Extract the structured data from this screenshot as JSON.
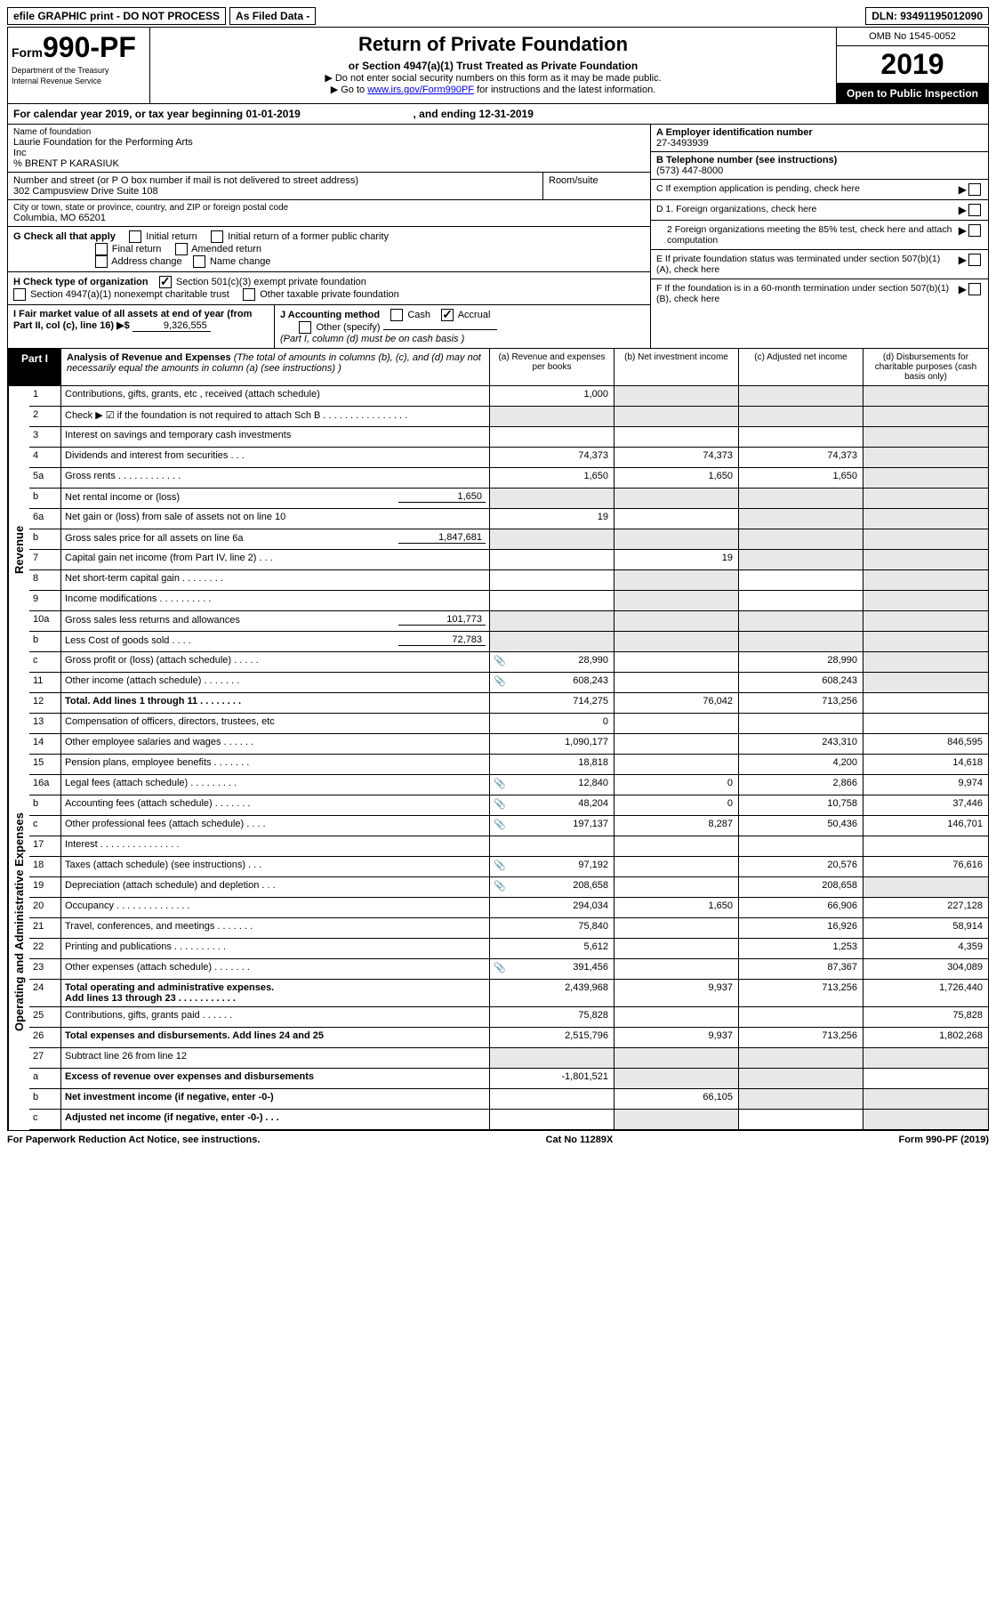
{
  "topbar": {
    "efile": "efile GRAPHIC print - DO NOT PROCESS",
    "asfiled": "As Filed Data -",
    "dln_label": "DLN:",
    "dln": "93491195012090"
  },
  "header": {
    "form_word": "Form",
    "form_no": "990-PF",
    "dept1": "Department of the Treasury",
    "dept2": "Internal Revenue Service",
    "title": "Return of Private Foundation",
    "subtitle": "or Section 4947(a)(1) Trust Treated as Private Foundation",
    "note1": "▶ Do not enter social security numbers on this form as it may be made public.",
    "note2_pre": "▶ Go to ",
    "note2_link": "www.irs.gov/Form990PF",
    "note2_post": " for instructions and the latest information.",
    "omb": "OMB No  1545-0052",
    "year": "2019",
    "inspect": "Open to Public Inspection"
  },
  "calyear": {
    "text_a": "For calendar year 2019, or tax year beginning 01-01-2019",
    "text_b": ", and ending 12-31-2019"
  },
  "left": {
    "name_label": "Name of foundation",
    "name1": "Laurie Foundation for the Performing Arts",
    "name2": "Inc",
    "name3": "% BRENT P KARASIUK",
    "addr_label": "Number and street (or P O  box number if mail is not delivered to street address)",
    "addr": "302 Campusview Drive Suite 108",
    "room_label": "Room/suite",
    "city_label": "City or town, state or province, country, and ZIP or foreign postal code",
    "city": "Columbia, MO  65201",
    "g_label": "G Check all that apply",
    "g1": "Initial return",
    "g2": "Initial return of a former public charity",
    "g3": "Final return",
    "g4": "Amended return",
    "g5": "Address change",
    "g6": "Name change",
    "h_label": "H Check type of organization",
    "h1": "Section 501(c)(3) exempt private foundation",
    "h2": "Section 4947(a)(1) nonexempt charitable trust",
    "h3": "Other taxable private foundation",
    "i_label": "I Fair market value of all assets at end of year (from Part II, col  (c), line 16) ▶$",
    "i_val": "9,326,555",
    "j_label": "J Accounting method",
    "j1": "Cash",
    "j2": "Accrual",
    "j3": "Other (specify)",
    "j_note": "(Part I, column (d) must be on cash basis )"
  },
  "right": {
    "a_label": "A Employer identification number",
    "a_val": "27-3493939",
    "b_label": "B Telephone number (see instructions)",
    "b_val": "(573) 447-8000",
    "c_label": "C  If exemption application is pending, check here",
    "d1_label": "D 1. Foreign organizations, check here",
    "d2_label": "2  Foreign organizations meeting the 85% test, check here and attach computation",
    "e_label": "E  If private foundation status was terminated under section 507(b)(1)(A), check here",
    "f_label": "F  If the foundation is in a 60-month termination under section 507(b)(1)(B), check here"
  },
  "part1": {
    "tag": "Part I",
    "title": "Analysis of Revenue and Expenses",
    "title_note": "(The total of amounts in columns (b), (c), and (d) may not necessarily equal the amounts in column (a) (see instructions) )",
    "col_a": "(a)   Revenue and expenses per books",
    "col_b": "(b)  Net investment income",
    "col_c": "(c)  Adjusted net income",
    "col_d": "(d)  Disbursements for charitable purposes (cash basis only)"
  },
  "rows": {
    "r1": {
      "n": "1",
      "d": "Contributions, gifts, grants, etc , received (attach schedule)",
      "a": "1,000"
    },
    "r2": {
      "n": "2",
      "d": "Check ▶ ☑ if the foundation is not required to attach Sch  B     .   .   .   .   .   .   .   .   .   .   .   .   .   .   .   ."
    },
    "r3": {
      "n": "3",
      "d": "Interest on savings and temporary cash investments"
    },
    "r4": {
      "n": "4",
      "d": "Dividends and interest from securities    .   .   .",
      "a": "74,373",
      "b": "74,373",
      "c": "74,373"
    },
    "r5a": {
      "n": "5a",
      "d": "Gross rents    .   .   .   .   .   .   .   .   .   .   .   .",
      "a": "1,650",
      "b": "1,650",
      "c": "1,650"
    },
    "r5b": {
      "n": "b",
      "d": "Net rental income or (loss)",
      "sub": "1,650"
    },
    "r6a": {
      "n": "6a",
      "d": "Net gain or (loss) from sale of assets not on line 10",
      "a": "19"
    },
    "r6b": {
      "n": "b",
      "d": "Gross sales price for all assets on line 6a",
      "sub": "1,847,681"
    },
    "r7": {
      "n": "7",
      "d": "Capital gain net income (from Part IV, line 2)   .   .   .",
      "b": "19"
    },
    "r8": {
      "n": "8",
      "d": "Net short-term capital gain  .   .   .   .   .   .   .   ."
    },
    "r9": {
      "n": "9",
      "d": "Income modifications .   .   .   .   .   .   .   .   .   ."
    },
    "r10a": {
      "n": "10a",
      "d": "Gross sales less returns and allowances",
      "sub": "101,773"
    },
    "r10b": {
      "n": "b",
      "d": "Less  Cost of goods sold    .   .   .   .",
      "sub": "72,783"
    },
    "r10c": {
      "n": "c",
      "d": "Gross profit or (loss) (attach schedule)   .   .   .   .   .",
      "clip": true,
      "a": "28,990",
      "c": "28,990"
    },
    "r11": {
      "n": "11",
      "d": "Other income (attach schedule)    .   .   .   .   .   .   .",
      "clip": true,
      "a": "608,243",
      "c": "608,243"
    },
    "r12": {
      "n": "12",
      "d": "Total. Add lines 1 through 11   .   .   .   .   .   .   .   .",
      "bold": true,
      "a": "714,275",
      "b": "76,042",
      "c": "713,256"
    },
    "r13": {
      "n": "13",
      "d": "Compensation of officers, directors, trustees, etc",
      "a": "0"
    },
    "r14": {
      "n": "14",
      "d": "Other employee salaries and wages   .   .   .   .   .   .",
      "a": "1,090,177",
      "c": "243,310",
      "dd": "846,595"
    },
    "r15": {
      "n": "15",
      "d": "Pension plans, employee benefits   .   .   .   .   .   .   .",
      "a": "18,818",
      "c": "4,200",
      "dd": "14,618"
    },
    "r16a": {
      "n": "16a",
      "d": "Legal fees (attach schedule) .   .   .   .   .   .   .   .   .",
      "clip": true,
      "a": "12,840",
      "b": "0",
      "c": "2,866",
      "dd": "9,974"
    },
    "r16b": {
      "n": "b",
      "d": "Accounting fees (attach schedule)  .   .   .   .   .   .   .",
      "clip": true,
      "a": "48,204",
      "b": "0",
      "c": "10,758",
      "dd": "37,446"
    },
    "r16c": {
      "n": "c",
      "d": "Other professional fees (attach schedule)    .   .   .   .",
      "clip": true,
      "a": "197,137",
      "b": "8,287",
      "c": "50,436",
      "dd": "146,701"
    },
    "r17": {
      "n": "17",
      "d": "Interest  .   .   .   .   .   .   .   .   .   .   .   .   .   .   ."
    },
    "r18": {
      "n": "18",
      "d": "Taxes (attach schedule) (see instructions)    .   .   .",
      "clip": true,
      "a": "97,192",
      "c": "20,576",
      "dd": "76,616"
    },
    "r19": {
      "n": "19",
      "d": "Depreciation (attach schedule) and depletion  .   .   .",
      "clip": true,
      "a": "208,658",
      "c": "208,658"
    },
    "r20": {
      "n": "20",
      "d": "Occupancy   .   .   .   .   .   .   .   .   .   .   .   .   .   .",
      "a": "294,034",
      "b": "1,650",
      "c": "66,906",
      "dd": "227,128"
    },
    "r21": {
      "n": "21",
      "d": "Travel, conferences, and meetings .   .   .   .   .   .   .",
      "a": "75,840",
      "c": "16,926",
      "dd": "58,914"
    },
    "r22": {
      "n": "22",
      "d": "Printing and publications .   .   .   .   .   .   .   .   .   .",
      "a": "5,612",
      "c": "1,253",
      "dd": "4,359"
    },
    "r23": {
      "n": "23",
      "d": "Other expenses (attach schedule)  .   .   .   .   .   .   .",
      "clip": true,
      "a": "391,456",
      "c": "87,367",
      "dd": "304,089"
    },
    "r24": {
      "n": "24",
      "d": "Total operating and administrative expenses.",
      "d2": "Add lines 13 through 23  .   .   .   .   .   .   .   .   .   .   .",
      "bold": true,
      "a": "2,439,968",
      "b": "9,937",
      "c": "713,256",
      "dd": "1,726,440"
    },
    "r25": {
      "n": "25",
      "d": "Contributions, gifts, grants paid    .   .   .   .   .   .",
      "a": "75,828",
      "dd": "75,828"
    },
    "r26": {
      "n": "26",
      "d": "Total expenses and disbursements. Add lines 24 and 25",
      "bold": true,
      "a": "2,515,796",
      "b": "9,937",
      "c": "713,256",
      "dd": "1,802,268"
    },
    "r27": {
      "n": "27",
      "d": "Subtract line 26 from line 12"
    },
    "r27a": {
      "n": "a",
      "d": "Excess of revenue over expenses and disbursements",
      "bold": true,
      "a": "-1,801,521"
    },
    "r27b": {
      "n": "b",
      "d": "Net investment income (if negative, enter -0-)",
      "bold": true,
      "b": "66,105"
    },
    "r27c": {
      "n": "c",
      "d": "Adjusted net income (if negative, enter -0-)  .   .   .",
      "bold": true
    }
  },
  "sidebars": {
    "rev": "Revenue",
    "exp": "Operating and Administrative Expenses"
  },
  "footer": {
    "left": "For Paperwork Reduction Act Notice, see instructions.",
    "mid": "Cat  No  11289X",
    "right": "Form 990-PF (2019)"
  }
}
